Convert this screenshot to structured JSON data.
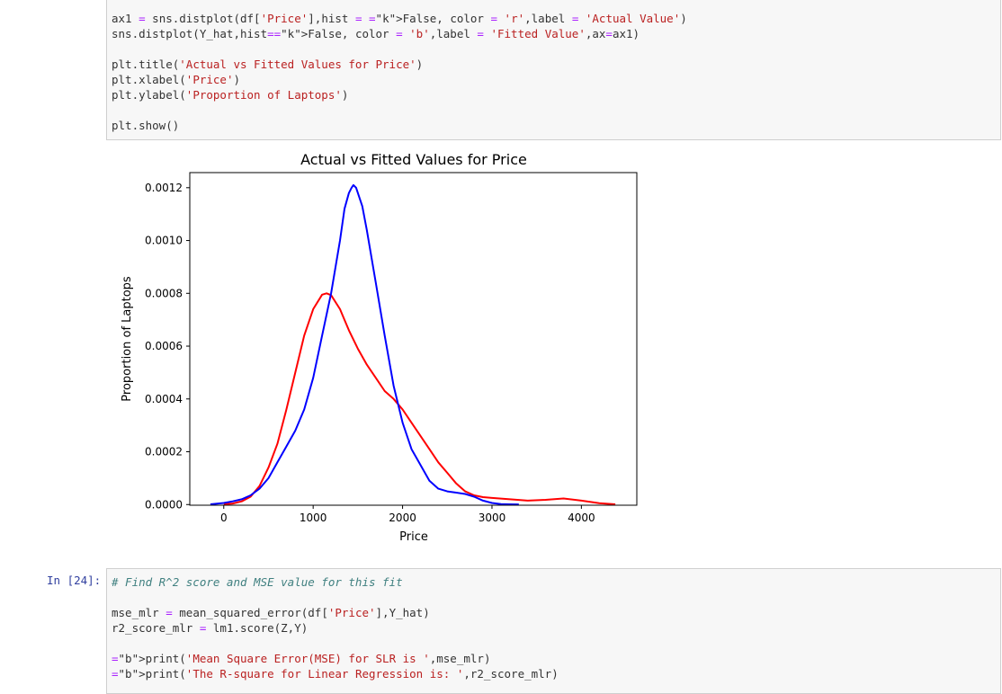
{
  "cell_top": {
    "lines": [
      "ax1 = sns.distplot(df['Price'],hist = False, color = 'r',label = 'Actual Value')",
      "sns.distplot(Y_hat,hist=False, color = 'b',label = 'Fitted Value',ax=ax1)",
      "",
      "plt.title('Actual vs Fitted Values for Price')",
      "plt.xlabel('Price')",
      "plt.ylabel('Proportion of Laptops')",
      "",
      "plt.show()"
    ]
  },
  "cell_bottom": {
    "prompt": "In [24]:",
    "lines": [
      "# Find R^2 score and MSE value for this fit",
      "",
      "mse_mlr = mean_squared_error(df['Price'],Y_hat)",
      "r2_score_mlr = lm1.score(Z,Y)",
      "",
      "print('Mean Square Error(MSE) for SLR is ',mse_mlr)",
      "print('The R-square for Linear Regression is: ',r2_score_mlr)"
    ]
  },
  "chart_data": {
    "type": "line",
    "title": "Actual vs Fitted Values for Price",
    "xlabel": "Price",
    "ylabel": "Proportion of Laptops",
    "xlim": [
      -380,
      4620
    ],
    "ylim": [
      -2.5e-06,
      0.0012572
    ],
    "xticks": [
      0,
      1000,
      2000,
      3000,
      4000
    ],
    "xtick_labels": [
      "0",
      "1000",
      "2000",
      "3000",
      "4000"
    ],
    "yticks": [
      0,
      0.0002,
      0.0004,
      0.0006,
      0.0008,
      0.001,
      0.0012
    ],
    "ytick_labels": [
      "0.0000",
      "0.0002",
      "0.0004",
      "0.0006",
      "0.0008",
      "0.0010",
      "0.0012"
    ],
    "grid": false,
    "series": [
      {
        "color": "#ff0000",
        "x": [
          0,
          100,
          200,
          300,
          400,
          500,
          600,
          700,
          800,
          900,
          1000,
          1100,
          1150,
          1200,
          1300,
          1400,
          1500,
          1600,
          1700,
          1800,
          1900,
          2000,
          2100,
          2200,
          2300,
          2400,
          2500,
          2600,
          2700,
          2800,
          2900,
          3000,
          3200,
          3400,
          3600,
          3800,
          4000,
          4200,
          4380
        ],
        "y": [
          1e-06,
          4e-06,
          1.2e-05,
          3e-05,
          7e-05,
          0.00014,
          0.00023,
          0.00036,
          0.0005,
          0.00064,
          0.00074,
          0.000795,
          0.0008,
          0.000793,
          0.00074,
          0.00066,
          0.00059,
          0.00053,
          0.00048,
          0.00043,
          0.0004,
          0.00036,
          0.00031,
          0.00026,
          0.00021,
          0.00016,
          0.00012,
          8e-05,
          5e-05,
          3.5e-05,
          2.8e-05,
          2.5e-05,
          2e-05,
          1.5e-05,
          1.8e-05,
          2.3e-05,
          1.5e-05,
          5e-06,
          1e-06
        ]
      },
      {
        "color": "#0000ff",
        "x": [
          -150,
          0,
          100,
          200,
          300,
          400,
          500,
          600,
          700,
          800,
          900,
          1000,
          1100,
          1200,
          1300,
          1350,
          1400,
          1430,
          1450,
          1480,
          1550,
          1600,
          1700,
          1800,
          1900,
          2000,
          2100,
          2200,
          2300,
          2400,
          2500,
          2600,
          2700,
          2800,
          2900,
          3000,
          3100,
          3200,
          3300
        ],
        "y": [
          1e-06,
          6e-06,
          1.2e-05,
          2e-05,
          3.5e-05,
          6e-05,
          0.0001,
          0.00016,
          0.00022,
          0.00028,
          0.00036,
          0.00048,
          0.00064,
          0.0008,
          0.001,
          0.00112,
          0.00118,
          0.0012,
          0.00121,
          0.0012,
          0.00113,
          0.00104,
          0.00084,
          0.00064,
          0.00045,
          0.00031,
          0.00021,
          0.00015,
          9e-05,
          6e-05,
          5e-05,
          4.5e-05,
          4e-05,
          3e-05,
          1.5e-05,
          6e-06,
          2e-06,
          1e-06,
          5e-07
        ]
      }
    ]
  }
}
